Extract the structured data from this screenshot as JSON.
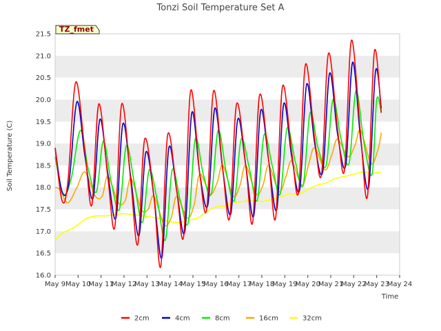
{
  "chart_data": {
    "type": "line",
    "title": "Tonzi Soil Temperature Set A",
    "xlabel": "Time",
    "ylabel": "Soil Temperature (C)",
    "tag_label": "TZ_fmet",
    "ylim": [
      16.0,
      21.5
    ],
    "yticks": [
      "16.0",
      "16.5",
      "17.0",
      "17.5",
      "18.0",
      "18.5",
      "19.0",
      "19.5",
      "20.0",
      "20.5",
      "21.0",
      "21.5"
    ],
    "xlim": [
      0,
      15
    ],
    "xticks": [
      "May 9",
      "May 10",
      "May 11",
      "May 12",
      "May 13",
      "May 14",
      "May 15",
      "May 16",
      "May 17",
      "May 18",
      "May 19",
      "May 20",
      "May 21",
      "May 22",
      "May 23",
      "May 24"
    ],
    "grid": "horizontal bands",
    "legend_position": "bottom",
    "series": [
      {
        "name": "2cm",
        "color": "#ff0000",
        "x": [
          0.0,
          0.3,
          0.55,
          0.9,
          1.3,
          1.6,
          1.9,
          2.3,
          2.6,
          2.9,
          3.3,
          3.6,
          3.9,
          4.3,
          4.6,
          4.9,
          5.3,
          5.6,
          5.9,
          6.3,
          6.6,
          6.9,
          7.3,
          7.6,
          7.9,
          8.3,
          8.6,
          8.9,
          9.3,
          9.6,
          9.9,
          10.3,
          10.6,
          10.9,
          11.3,
          11.6,
          11.9,
          12.3,
          12.6,
          12.9,
          13.3,
          13.6,
          13.9,
          14.2
        ],
        "values": [
          18.9,
          17.7,
          18.1,
          20.4,
          18.8,
          17.6,
          19.9,
          18.2,
          17.1,
          19.9,
          18.1,
          16.7,
          19.1,
          17.8,
          16.2,
          19.2,
          17.9,
          16.9,
          20.2,
          18.3,
          17.5,
          20.2,
          18.4,
          17.3,
          19.9,
          18.5,
          17.2,
          20.1,
          18.6,
          17.3,
          20.3,
          18.8,
          17.9,
          20.8,
          19.1,
          18.3,
          21.05,
          19.3,
          18.4,
          21.35,
          19.2,
          17.8,
          21.1,
          19.7
        ]
      },
      {
        "name": "4cm",
        "color": "#0000cc",
        "x": [
          0.0,
          0.3,
          0.6,
          0.95,
          1.3,
          1.65,
          1.95,
          2.3,
          2.65,
          2.95,
          3.3,
          3.65,
          3.95,
          4.3,
          4.65,
          4.95,
          5.3,
          5.65,
          5.95,
          6.3,
          6.65,
          6.95,
          7.3,
          7.65,
          7.95,
          8.3,
          8.65,
          8.95,
          9.3,
          9.65,
          9.95,
          10.3,
          10.65,
          10.95,
          11.3,
          11.65,
          11.95,
          12.3,
          12.65,
          12.95,
          13.3,
          13.65,
          13.95,
          14.2
        ],
        "values": [
          18.9,
          17.9,
          18.1,
          19.95,
          18.7,
          17.75,
          19.55,
          18.3,
          17.3,
          19.45,
          18.2,
          16.9,
          18.8,
          17.8,
          16.4,
          18.9,
          17.9,
          17.0,
          19.7,
          18.3,
          17.6,
          19.8,
          18.4,
          17.4,
          19.55,
          18.5,
          17.35,
          19.75,
          18.6,
          17.5,
          19.9,
          18.7,
          17.95,
          20.35,
          19.0,
          18.35,
          20.6,
          19.2,
          18.5,
          20.85,
          19.1,
          18.0,
          20.65,
          19.8
        ]
      },
      {
        "name": "8cm",
        "color": "#00ee00",
        "x": [
          0.0,
          0.35,
          0.7,
          1.1,
          1.45,
          1.8,
          2.1,
          2.45,
          2.8,
          3.1,
          3.45,
          3.8,
          4.1,
          4.45,
          4.8,
          5.1,
          5.45,
          5.8,
          6.1,
          6.45,
          6.8,
          7.1,
          7.45,
          7.8,
          8.1,
          8.45,
          8.8,
          9.1,
          9.45,
          9.8,
          10.1,
          10.45,
          10.8,
          11.1,
          11.45,
          11.8,
          12.1,
          12.45,
          12.8,
          13.1,
          13.45,
          13.8,
          14.0,
          14.2
        ],
        "values": [
          18.7,
          17.85,
          18.2,
          19.3,
          18.4,
          17.9,
          19.05,
          18.1,
          17.5,
          18.95,
          18.1,
          17.2,
          18.4,
          17.7,
          16.8,
          18.4,
          17.7,
          17.2,
          19.1,
          18.3,
          17.85,
          19.3,
          18.35,
          17.7,
          19.1,
          18.45,
          17.7,
          19.2,
          18.5,
          17.85,
          19.35,
          18.6,
          18.05,
          19.7,
          18.9,
          18.5,
          20.0,
          19.1,
          18.55,
          20.2,
          19.0,
          18.3,
          20.0,
          19.7
        ]
      },
      {
        "name": "16cm",
        "color": "#ffa500",
        "x": [
          0.0,
          0.2,
          0.55,
          0.95,
          1.3,
          1.75,
          2.05,
          2.3,
          2.75,
          3.05,
          3.3,
          3.75,
          4.05,
          4.3,
          4.75,
          5.05,
          5.3,
          5.75,
          6.05,
          6.3,
          6.75,
          7.05,
          7.3,
          7.75,
          8.05,
          8.3,
          8.75,
          9.05,
          9.3,
          9.75,
          10.05,
          10.3,
          10.75,
          11.05,
          11.3,
          11.75,
          12.05,
          12.3,
          12.75,
          13.05,
          13.3,
          13.75,
          14.05,
          14.2
        ],
        "values": [
          18.0,
          17.95,
          17.65,
          18.0,
          18.35,
          17.8,
          17.8,
          18.25,
          17.65,
          17.7,
          18.2,
          17.5,
          17.5,
          17.8,
          17.15,
          17.3,
          17.8,
          17.3,
          17.6,
          18.3,
          17.85,
          18.1,
          18.5,
          17.8,
          18.05,
          18.5,
          17.85,
          18.05,
          18.5,
          17.9,
          18.25,
          18.6,
          18.05,
          18.55,
          18.9,
          18.4,
          18.75,
          19.1,
          18.7,
          18.95,
          19.3,
          18.55,
          18.85,
          19.25
        ]
      },
      {
        "name": "32cm",
        "color": "#ffff00",
        "x": [
          0.0,
          0.3,
          0.7,
          1.0,
          1.4,
          1.8,
          2.2,
          2.6,
          3.0,
          3.4,
          3.8,
          4.2,
          4.6,
          5.0,
          5.4,
          5.8,
          6.2,
          6.6,
          7.0,
          7.4,
          7.8,
          8.2,
          8.6,
          9.0,
          9.4,
          9.8,
          10.2,
          10.6,
          11.0,
          11.4,
          11.8,
          12.2,
          12.6,
          13.0,
          13.4,
          13.8,
          14.2
        ],
        "values": [
          16.8,
          16.95,
          17.05,
          17.15,
          17.3,
          17.35,
          17.35,
          17.38,
          17.4,
          17.38,
          17.35,
          17.32,
          17.28,
          17.22,
          17.2,
          17.25,
          17.3,
          17.45,
          17.55,
          17.58,
          17.65,
          17.68,
          17.7,
          17.68,
          17.72,
          17.78,
          17.85,
          17.85,
          17.95,
          18.05,
          18.1,
          18.2,
          18.25,
          18.3,
          18.35,
          18.32,
          18.35
        ]
      }
    ]
  }
}
